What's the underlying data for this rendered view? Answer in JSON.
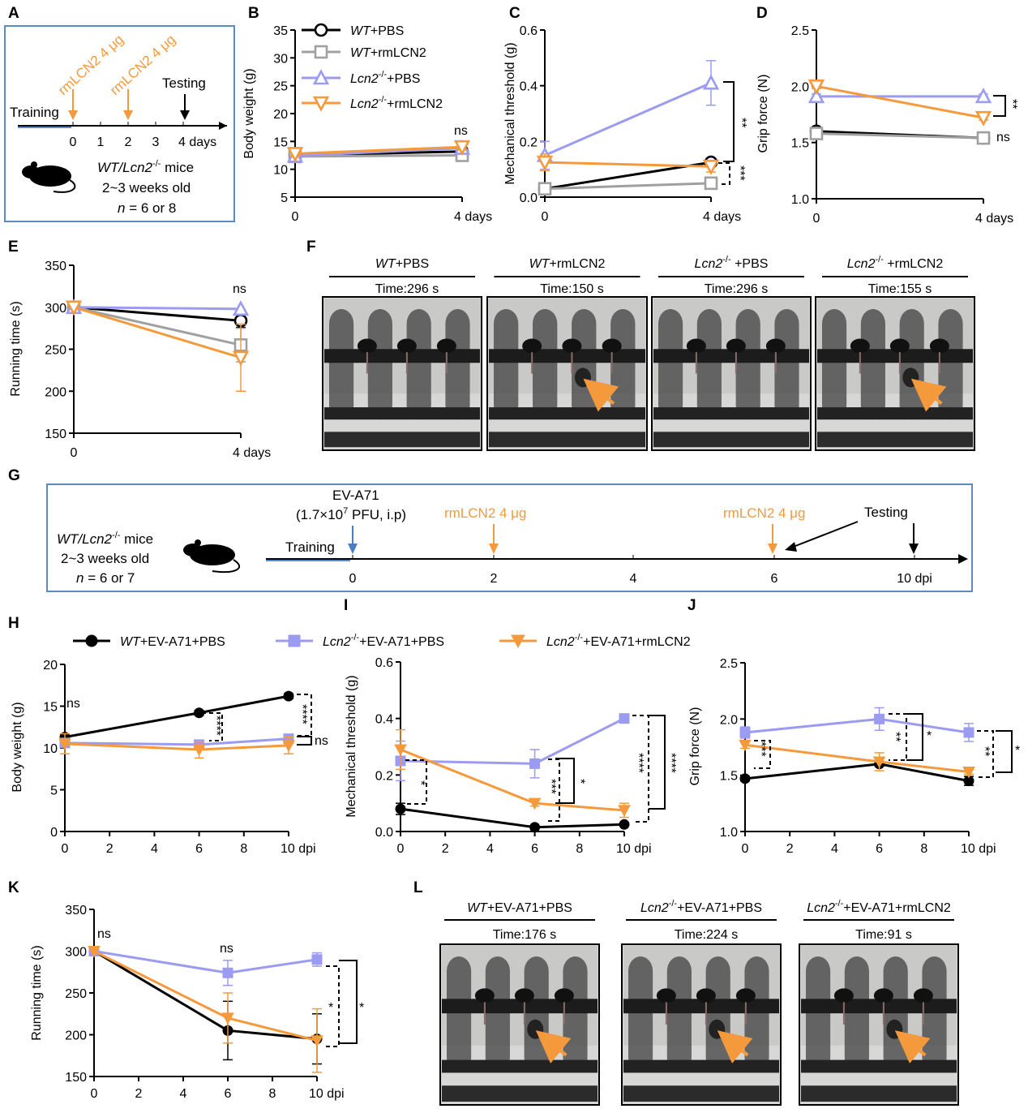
{
  "colors": {
    "wt_pbs": "#000000",
    "wt_rmlcn2": "#a0a0a0",
    "lcn2_pbs": "#9b9bf2",
    "lcn2_rmlcn2": "#f59a3c",
    "ev": "#4a7fc1",
    "box": "#5b8bc4"
  },
  "panels": {
    "A": {
      "letter": "A",
      "arrow1": "rmLCN2 4 μg",
      "arrow2": "rmLCN2 4 μg",
      "testing": "Testing",
      "training": "Training",
      "ticks": [
        "0",
        "1",
        "2",
        "3",
        "4 days"
      ],
      "mice_line1_italic": "WT/Lcn2",
      "mice_line1_sup": "-/-",
      "mice_line1_rest": " mice",
      "mice_line2": "2~3 weeks old",
      "mice_line3_n": "n",
      "mice_line3_rest": " = 6 or 8"
    },
    "F": {
      "letter": "F",
      "photos": [
        {
          "title_it": "WT",
          "title_rest": "+PBS",
          "sup": "",
          "time": "Time:296  s"
        },
        {
          "title_it": "WT",
          "title_rest": "+rmLCN2",
          "sup": "",
          "time": "Time:150  s"
        },
        {
          "title_it": "Lcn2",
          "title_rest": " +PBS",
          "sup": "-/-",
          "time": "Time:296  s"
        },
        {
          "title_it": "Lcn2",
          "title_rest": " +rmLCN2",
          "sup": "-/-",
          "time": "Time:155  s"
        }
      ]
    },
    "G": {
      "letter": "G",
      "ev": "EV-A71",
      "ev_dose_pre": "(1.7×10",
      "ev_dose_sup": "7",
      "ev_dose_post": " PFU, i.p)",
      "arrow1": "rmLCN2 4 μg",
      "arrow2": "rmLCN2 4 μg",
      "testing": "Testing",
      "training": "Training",
      "ticks": [
        "0",
        "2",
        "4",
        "6",
        "10 dpi"
      ],
      "mice_line1_italic": "WT/Lcn2",
      "mice_line1_sup": "-/-",
      "mice_line1_rest": " mice",
      "mice_line2": "2~3 weeks old",
      "mice_line3_n": "n",
      "mice_line3_rest": " = 6 or 7"
    },
    "L": {
      "letter": "L",
      "photos": [
        {
          "title_it": "WT",
          "title_rest": "+EV-A71+PBS",
          "sup": "",
          "time": "Time:176  s"
        },
        {
          "title_it": "Lcn2",
          "title_rest": "+EV-A71+PBS",
          "sup": "-/-",
          "time": "Time:224  s"
        },
        {
          "title_it": "Lcn2",
          "title_rest": "+EV-A71+rmLCN2",
          "sup": "-/-",
          "time": "Time:91  s"
        }
      ]
    }
  },
  "legend_top": [
    {
      "it": "WT",
      "sup": "",
      "rest": "+PBS",
      "key": "wt_pbs",
      "marker": "circle-open"
    },
    {
      "it": "WT",
      "sup": "",
      "rest": "+rmLCN2",
      "key": "wt_rmlcn2",
      "marker": "square-open"
    },
    {
      "it": "Lcn2",
      "sup": "-/-",
      "rest": "+PBS",
      "key": "lcn2_pbs",
      "marker": "triangle-open"
    },
    {
      "it": "Lcn2",
      "sup": "-/-",
      "rest": "+rmLCN2",
      "key": "lcn2_rmlcn2",
      "marker": "triangledown-open"
    }
  ],
  "legend_bottom": [
    {
      "it": "WT",
      "sup": "",
      "rest": "+EV-A71+PBS",
      "key": "wt_pbs",
      "marker": "circle"
    },
    {
      "it": "Lcn2",
      "sup": "-/-",
      "rest": "+EV-A71+PBS",
      "key": "lcn2_pbs",
      "marker": "square"
    },
    {
      "it": "Lcn2",
      "sup": "-/-",
      "rest": "+EV-A71+rmLCN2",
      "key": "lcn2_rmlcn2",
      "marker": "triangledown"
    }
  ],
  "chart_data": [
    {
      "panel": "B",
      "type": "line",
      "ylabel": "Body weight (g)",
      "xticks": [
        "0",
        "4 days"
      ],
      "x": [
        0,
        4
      ],
      "ylim": [
        5,
        35
      ],
      "yticks": [
        5,
        10,
        15,
        20,
        25,
        30,
        35
      ],
      "series": [
        {
          "key": "wt_pbs",
          "marker": "circle-open",
          "values": [
            12.5,
            13.2
          ],
          "err": [
            0.5,
            0.5
          ]
        },
        {
          "key": "wt_rmlcn2",
          "marker": "square-open",
          "values": [
            12.3,
            12.5
          ],
          "err": [
            0.5,
            0.5
          ]
        },
        {
          "key": "lcn2_pbs",
          "marker": "triangle-open",
          "values": [
            12.4,
            13.8
          ],
          "err": [
            0.5,
            0.5
          ]
        },
        {
          "key": "lcn2_rmlcn2",
          "marker": "triangledown-open",
          "values": [
            12.8,
            14.0
          ],
          "err": [
            0.5,
            0.5
          ]
        }
      ],
      "annotations": [
        "ns"
      ]
    },
    {
      "panel": "C",
      "type": "line",
      "ylabel": "Mechanical threshold (g)",
      "xticks": [
        "0",
        "4 days"
      ],
      "x": [
        0,
        4
      ],
      "ylim": [
        0,
        0.6
      ],
      "yticks": [
        0.0,
        0.2,
        0.4,
        0.6
      ],
      "series": [
        {
          "key": "wt_pbs",
          "marker": "circle-open",
          "values": [
            0.03,
            0.125
          ],
          "err": [
            0.01,
            0.01
          ]
        },
        {
          "key": "wt_rmlcn2",
          "marker": "square-open",
          "values": [
            0.03,
            0.05
          ],
          "err": [
            0.01,
            0.01
          ]
        },
        {
          "key": "lcn2_pbs",
          "marker": "triangle-open",
          "values": [
            0.15,
            0.41
          ],
          "err": [
            0.05,
            0.08
          ]
        },
        {
          "key": "lcn2_rmlcn2",
          "marker": "triangledown-open",
          "values": [
            0.125,
            0.11
          ],
          "err": [
            0.03,
            0.02
          ]
        }
      ],
      "annotations": [
        "**",
        "***"
      ]
    },
    {
      "panel": "D",
      "type": "line",
      "ylabel": "Grip force (N)",
      "xticks": [
        "0",
        "4 days"
      ],
      "x": [
        0,
        4
      ],
      "ylim": [
        1.0,
        2.5
      ],
      "yticks": [
        1.0,
        1.5,
        2.0,
        2.5
      ],
      "series": [
        {
          "key": "wt_pbs",
          "marker": "circle-open",
          "values": [
            1.6,
            1.54
          ],
          "err": [
            0.03,
            0.03
          ]
        },
        {
          "key": "wt_rmlcn2",
          "marker": "square-open",
          "values": [
            1.58,
            1.54
          ],
          "err": [
            0.03,
            0.03
          ]
        },
        {
          "key": "lcn2_pbs",
          "marker": "triangle-open",
          "values": [
            1.91,
            1.91
          ],
          "err": [
            0.02,
            0.02
          ]
        },
        {
          "key": "lcn2_rmlcn2",
          "marker": "triangledown-open",
          "values": [
            2.0,
            1.72
          ],
          "err": [
            0.02,
            0.02
          ]
        }
      ],
      "annotations": [
        "**",
        "ns"
      ]
    },
    {
      "panel": "E",
      "type": "line",
      "ylabel": "Running time (s)",
      "xticks": [
        "0",
        "4 days"
      ],
      "x": [
        0,
        4
      ],
      "ylim": [
        150,
        350
      ],
      "yticks": [
        150,
        200,
        250,
        300,
        350
      ],
      "series": [
        {
          "key": "wt_pbs",
          "marker": "circle-open",
          "values": [
            300,
            284
          ],
          "err": [
            0,
            8
          ]
        },
        {
          "key": "wt_rmlcn2",
          "marker": "square-open",
          "values": [
            300,
            255
          ],
          "err": [
            0,
            20
          ]
        },
        {
          "key": "lcn2_pbs",
          "marker": "triangle-open",
          "values": [
            300,
            298
          ],
          "err": [
            0,
            0
          ]
        },
        {
          "key": "lcn2_rmlcn2",
          "marker": "triangledown-open",
          "values": [
            300,
            240
          ],
          "err": [
            0,
            40
          ]
        }
      ],
      "annotations": [
        "ns"
      ]
    },
    {
      "panel": "H",
      "type": "line",
      "ylabel": "Body weight (g)",
      "xticks": [
        "0",
        "2",
        "4",
        "6",
        "8",
        "10 dpi"
      ],
      "x": [
        0,
        6,
        10
      ],
      "ylim": [
        0,
        20
      ],
      "yticks": [
        0,
        5,
        10,
        15,
        20
      ],
      "series": [
        {
          "key": "wt_pbs",
          "marker": "circle",
          "values": [
            11.3,
            14.2,
            16.2
          ],
          "err": [
            0.3,
            0.3,
            0.3
          ]
        },
        {
          "key": "lcn2_pbs",
          "marker": "square",
          "values": [
            10.6,
            10.4,
            11.1
          ],
          "err": [
            0.5,
            0.5,
            0.5
          ]
        },
        {
          "key": "lcn2_rmlcn2",
          "marker": "triangledown",
          "values": [
            10.5,
            9.8,
            10.3
          ],
          "err": [
            1.2,
            1.0,
            1.0
          ]
        }
      ],
      "annotations": [
        "ns",
        "****",
        "****",
        "ns"
      ]
    },
    {
      "panel": "I",
      "type": "line",
      "ylabel": "Mechanical threshold (g)",
      "xticks": [
        "0",
        "2",
        "4",
        "6",
        "8",
        "10 dpi"
      ],
      "x": [
        0,
        6,
        10
      ],
      "ylim": [
        0,
        0.6
      ],
      "yticks": [
        0.0,
        0.2,
        0.4,
        0.6
      ],
      "series": [
        {
          "key": "wt_pbs",
          "marker": "circle",
          "values": [
            0.08,
            0.015,
            0.025
          ],
          "err": [
            0.02,
            0.005,
            0.005
          ]
        },
        {
          "key": "lcn2_pbs",
          "marker": "square",
          "values": [
            0.25,
            0.24,
            0.4
          ],
          "err": [
            0.07,
            0.05,
            0.01
          ]
        },
        {
          "key": "lcn2_rmlcn2",
          "marker": "triangledown",
          "values": [
            0.29,
            0.1,
            0.075
          ],
          "err": [
            0.07,
            0.01,
            0.025
          ]
        }
      ],
      "annotations": [
        "*",
        "***",
        "*",
        "****",
        "****"
      ]
    },
    {
      "panel": "J",
      "type": "line",
      "ylabel": "Grip force (N)",
      "xticks": [
        "0",
        "2",
        "4",
        "6",
        "8",
        "10 dpi"
      ],
      "x": [
        0,
        6,
        10
      ],
      "ylim": [
        1.0,
        2.5
      ],
      "yticks": [
        1.0,
        1.5,
        2.0,
        2.5
      ],
      "series": [
        {
          "key": "wt_pbs",
          "marker": "circle",
          "values": [
            1.47,
            1.6,
            1.45
          ],
          "err": [
            0.02,
            0.02,
            0.04
          ]
        },
        {
          "key": "lcn2_pbs",
          "marker": "square",
          "values": [
            1.88,
            2.0,
            1.88
          ],
          "err": [
            0.05,
            0.1,
            0.08
          ]
        },
        {
          "key": "lcn2_rmlcn2",
          "marker": "triangledown",
          "values": [
            1.77,
            1.62,
            1.53
          ],
          "err": [
            0.03,
            0.08,
            0.02
          ]
        }
      ],
      "annotations": [
        "***",
        "**",
        "*",
        "**",
        "*"
      ]
    },
    {
      "panel": "K",
      "type": "line",
      "ylabel": "Running time (s)",
      "xticks": [
        "0",
        "2",
        "4",
        "6",
        "8",
        "10 dpi"
      ],
      "x": [
        0,
        6,
        10
      ],
      "ylim": [
        150,
        350
      ],
      "yticks": [
        150,
        200,
        250,
        300,
        350
      ],
      "series": [
        {
          "key": "wt_pbs",
          "marker": "circle",
          "values": [
            300,
            205,
            195
          ],
          "err": [
            0,
            35,
            30
          ]
        },
        {
          "key": "lcn2_pbs",
          "marker": "square",
          "values": [
            300,
            274,
            290
          ],
          "err": [
            0,
            15,
            8
          ]
        },
        {
          "key": "lcn2_rmlcn2",
          "marker": "triangledown",
          "values": [
            300,
            220,
            193
          ],
          "err": [
            0,
            30,
            38
          ]
        }
      ],
      "annotations": [
        "ns",
        "ns",
        "*",
        "*"
      ]
    }
  ]
}
